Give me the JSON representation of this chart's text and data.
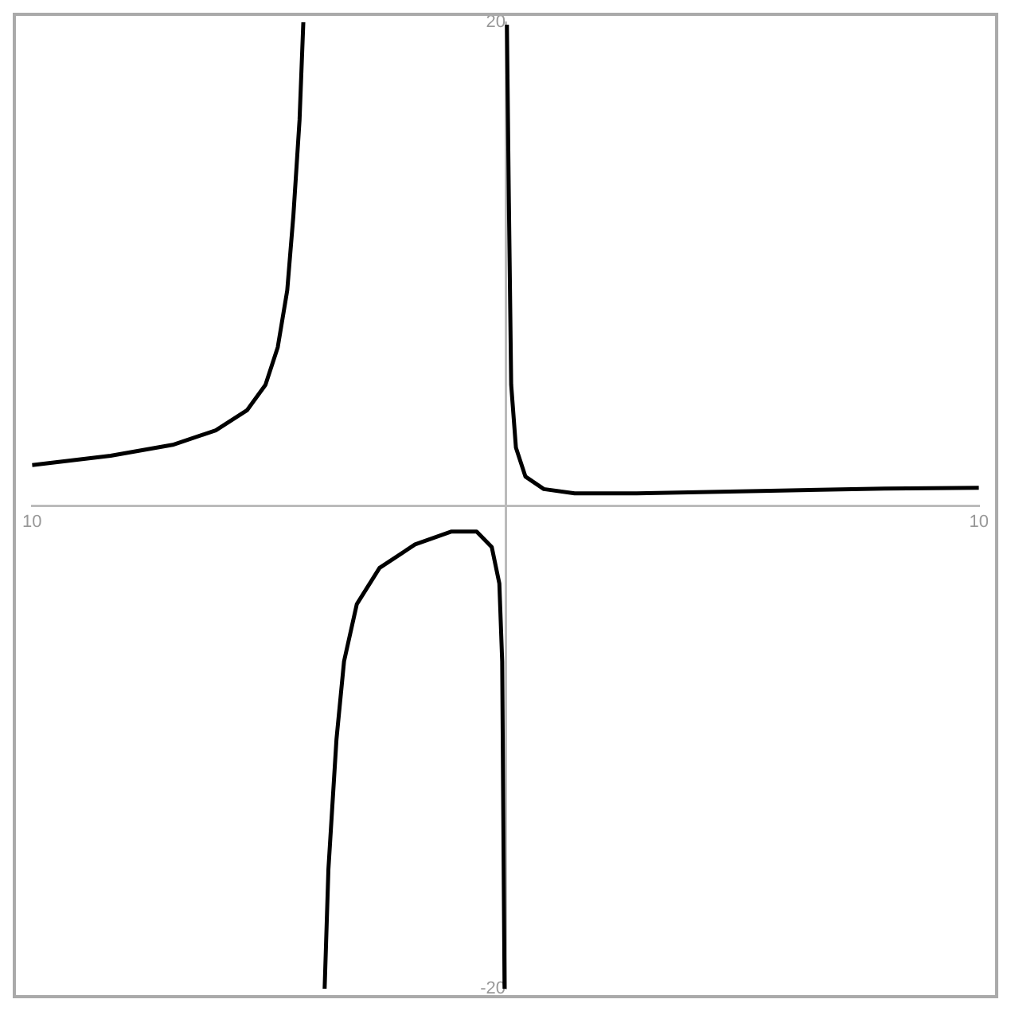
{
  "chart_data": {
    "type": "line",
    "xlim": [
      -10,
      10
    ],
    "ylim": [
      -20,
      20
    ],
    "xticks": [
      {
        "value": -10,
        "label": "10"
      },
      {
        "value": 10,
        "label": "10"
      }
    ],
    "yticks": [
      -20,
      20
    ],
    "grid": false,
    "series": [
      {
        "color": "#000000",
        "x": [
          -10,
          -8.34,
          -7.03,
          -6.12,
          -5.46,
          -5.07,
          -4.81,
          -4.61,
          -4.48,
          -4.35,
          -4.27,
          -4.0,
          -3.82,
          -3.74,
          -3.57,
          -3.41,
          -3.14,
          -2.66,
          -1.91,
          -1.15,
          -0.61,
          -0.29,
          -0.13,
          -0.07,
          -0.02,
          0,
          0.03,
          0.07,
          0.12,
          0.22,
          0.42,
          0.81,
          1.46,
          2.77,
          5.39,
          8.0,
          10
        ],
        "values": [
          1.67,
          2.06,
          2.51,
          3.11,
          3.94,
          4.99,
          6.55,
          8.9,
          12.0,
          15.95,
          20,
          null,
          -20,
          -15.05,
          -9.68,
          -6.45,
          -4.08,
          -2.58,
          -1.61,
          -1.08,
          -1.08,
          -1.72,
          -3.23,
          -6.45,
          -20,
          null,
          19.9,
          12.8,
          5.0,
          2.4,
          1.2,
          0.68,
          0.5,
          0.5,
          0.6,
          0.7,
          0.73
        ]
      }
    ]
  }
}
